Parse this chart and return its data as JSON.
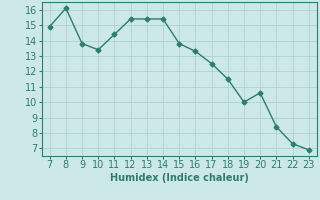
{
  "x": [
    7,
    8,
    9,
    10,
    11,
    12,
    13,
    14,
    15,
    16,
    17,
    18,
    19,
    20,
    21,
    22,
    23
  ],
  "y": [
    14.9,
    16.1,
    13.8,
    13.4,
    14.4,
    15.4,
    15.4,
    15.4,
    13.8,
    13.3,
    12.5,
    11.5,
    10.0,
    10.6,
    8.4,
    7.3,
    6.9
  ],
  "line_color": "#2e7d6e",
  "marker": "D",
  "marker_size": 2.5,
  "xlabel": "Humidex (Indice chaleur)",
  "xlim": [
    6.5,
    23.5
  ],
  "ylim": [
    6.5,
    16.5
  ],
  "xticks": [
    7,
    8,
    9,
    10,
    11,
    12,
    13,
    14,
    15,
    16,
    17,
    18,
    19,
    20,
    21,
    22,
    23
  ],
  "yticks": [
    7,
    8,
    9,
    10,
    11,
    12,
    13,
    14,
    15,
    16
  ],
  "bg_color": "#cce8e8",
  "grid_color": "#aacece",
  "font_size": 7,
  "linewidth": 1.0
}
